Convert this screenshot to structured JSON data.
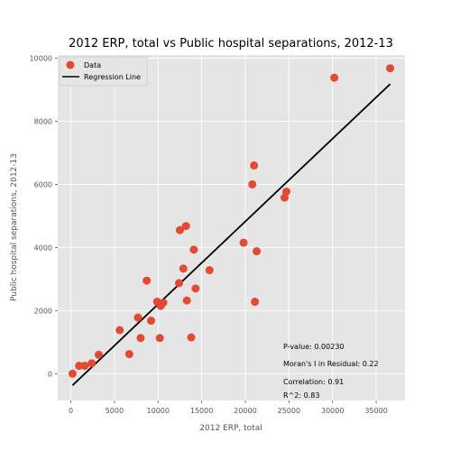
{
  "chart_data": {
    "type": "scatter",
    "title": "2012 ERP, total vs Public hospital separations, 2012-13",
    "xlabel": "2012 ERP, total",
    "ylabel": "Public hospital separations, 2012-13",
    "xlim": [
      -1500,
      38300
    ],
    "ylim": [
      -850,
      10100
    ],
    "x_ticks": [
      0,
      5000,
      10000,
      15000,
      20000,
      25000,
      30000,
      35000
    ],
    "y_ticks": [
      0,
      2000,
      4000,
      6000,
      8000,
      10000
    ],
    "grid": true,
    "legend_position": "top-left",
    "series": [
      {
        "name": "Data",
        "kind": "scatter",
        "color": "#E24A33",
        "points": [
          [
            200,
            0
          ],
          [
            950,
            250
          ],
          [
            1600,
            250
          ],
          [
            2400,
            330
          ],
          [
            3200,
            600
          ],
          [
            5600,
            1380
          ],
          [
            6700,
            620
          ],
          [
            7700,
            1780
          ],
          [
            8000,
            1130
          ],
          [
            8700,
            2950
          ],
          [
            9200,
            1680
          ],
          [
            9900,
            2280
          ],
          [
            10200,
            1130
          ],
          [
            10300,
            2150
          ],
          [
            10600,
            2250
          ],
          [
            12400,
            2870
          ],
          [
            12500,
            4550
          ],
          [
            12900,
            3330
          ],
          [
            13200,
            4680
          ],
          [
            13300,
            2320
          ],
          [
            13800,
            1150
          ],
          [
            14100,
            3930
          ],
          [
            14300,
            2700
          ],
          [
            15900,
            3280
          ],
          [
            19800,
            4150
          ],
          [
            20800,
            6000
          ],
          [
            21000,
            6600
          ],
          [
            21100,
            2280
          ],
          [
            21300,
            3880
          ],
          [
            24500,
            5580
          ],
          [
            24700,
            5770
          ],
          [
            30200,
            9380
          ],
          [
            36600,
            9680
          ]
        ]
      },
      {
        "name": "Regression Line",
        "kind": "line",
        "color": "#000000",
        "points": [
          [
            200,
            -370
          ],
          [
            36600,
            9180
          ]
        ]
      }
    ],
    "annotations": [
      "P-value: 0.00230",
      "Moran's I in Residual: 0.22",
      "Correlation: 0.91",
      "R^2: 0.83"
    ]
  }
}
